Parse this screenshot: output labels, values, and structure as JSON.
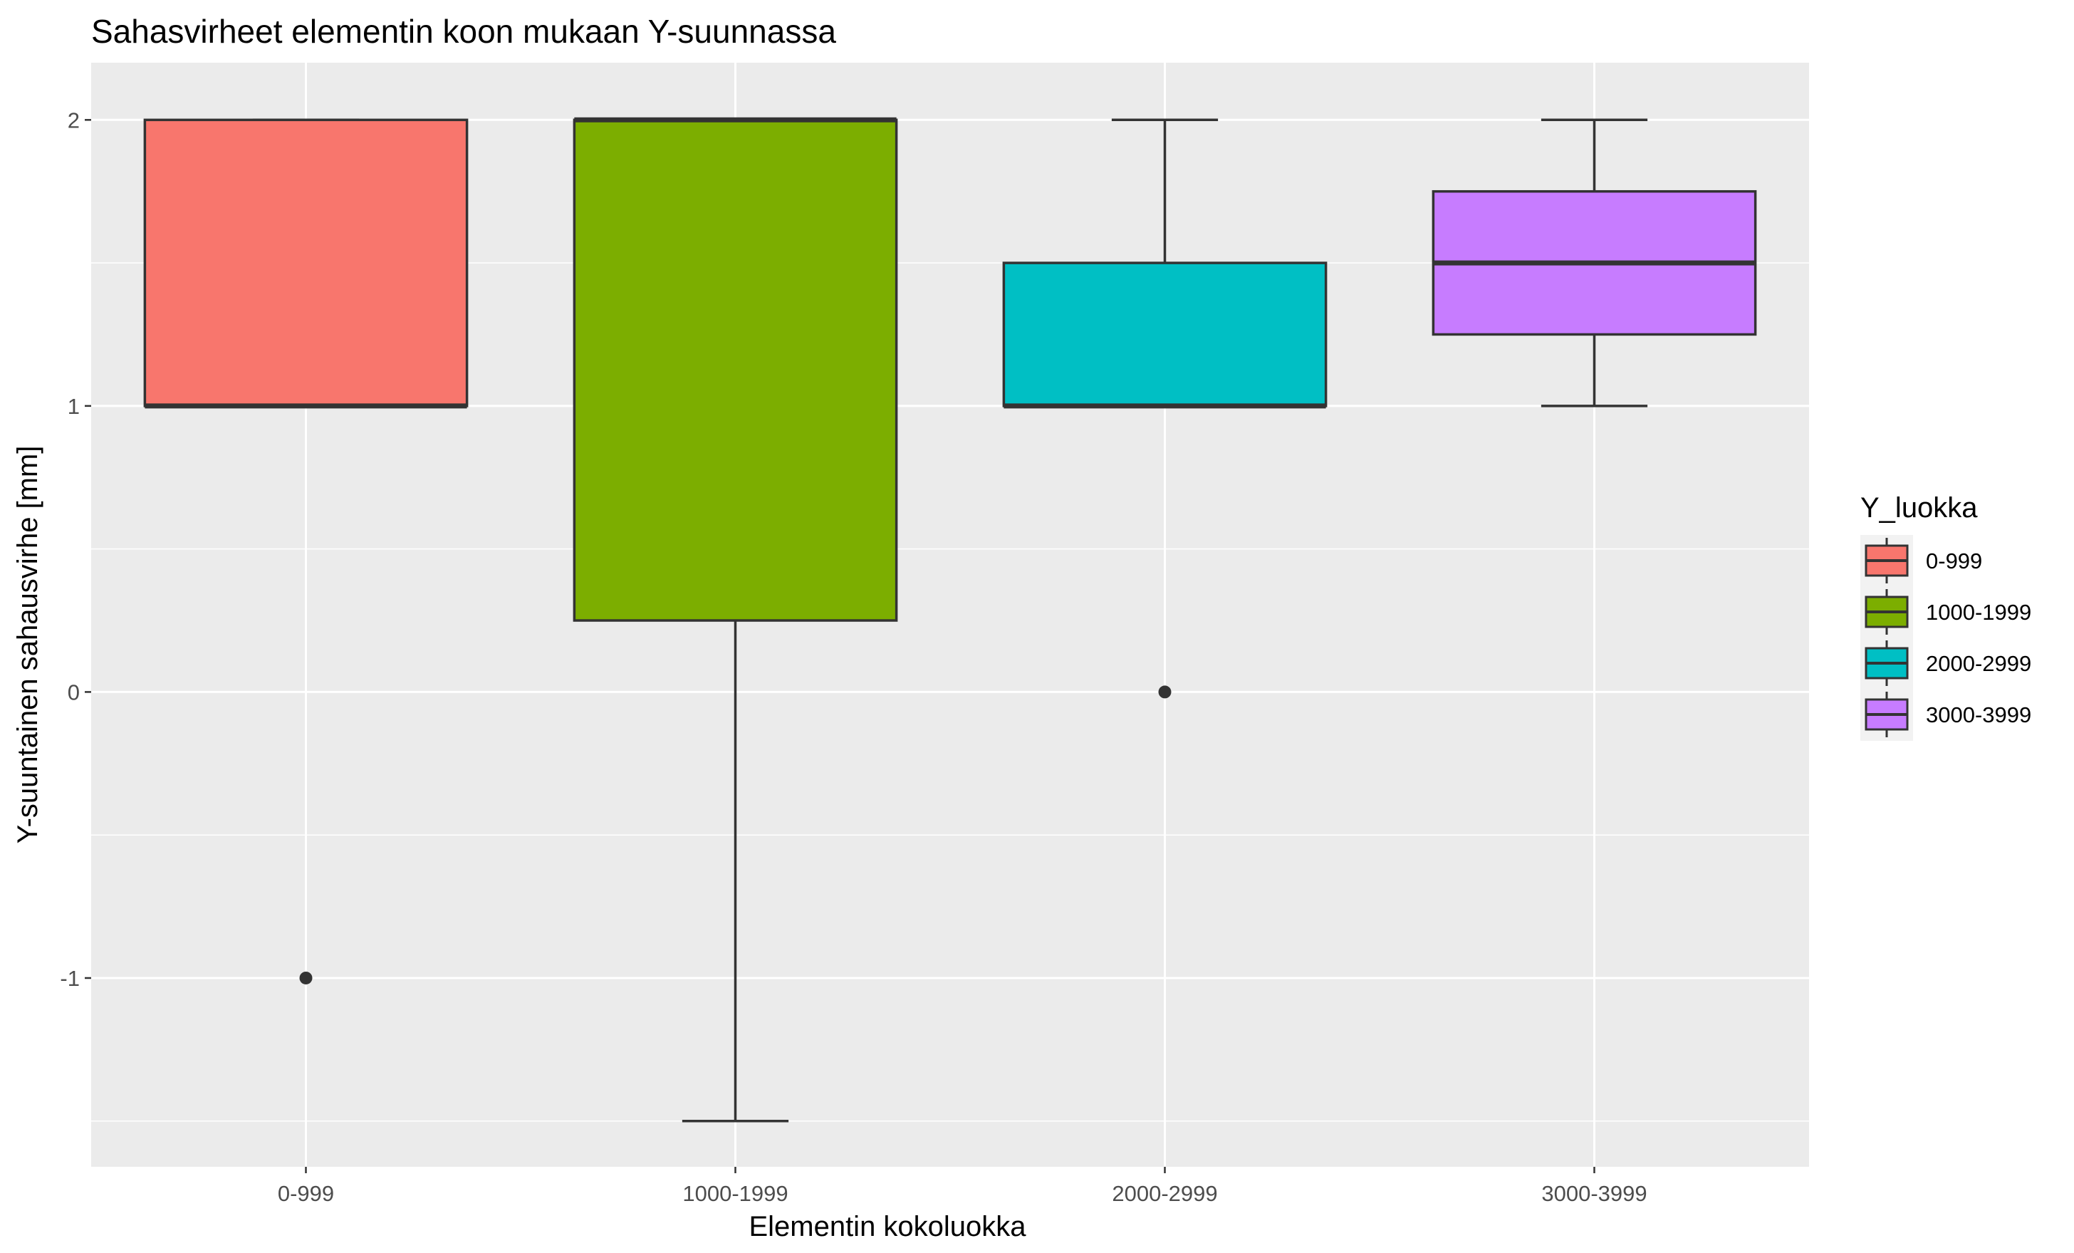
{
  "chart_data": {
    "type": "boxplot",
    "title": "Sahasvirheet elementin koon mukaan Y-suunnassa",
    "xlabel": "Elementin kokoluokka",
    "ylabel": "Y-suuntainen sahausvirhe [mm]",
    "ylim": [
      -1.66,
      2.2
    ],
    "yticks": [
      -1,
      0,
      1,
      2
    ],
    "grid": true,
    "legend": {
      "title": "Y_luokka",
      "position": "right",
      "entries": [
        "0-999",
        "1000-1999",
        "2000-2999",
        "3000-3999"
      ]
    },
    "categories": [
      "0-999",
      "1000-1999",
      "2000-2999",
      "3000-3999"
    ],
    "series": [
      {
        "name": "0-999",
        "color": "#F8766D",
        "min": 1,
        "q1": 1,
        "median": 1,
        "q3": 2,
        "max": 2,
        "outliers": [
          -1
        ]
      },
      {
        "name": "1000-1999",
        "color": "#7CAE00",
        "min": -1.5,
        "q1": 0.25,
        "median": 2,
        "q3": 2,
        "max": 2,
        "outliers": []
      },
      {
        "name": "2000-2999",
        "color": "#00BFC4",
        "min": 1,
        "q1": 1,
        "median": 1,
        "q3": 1.5,
        "max": 2,
        "outliers": [
          0
        ]
      },
      {
        "name": "3000-3999",
        "color": "#C77CFF",
        "min": 1,
        "q1": 1.25,
        "median": 1.5,
        "q3": 1.75,
        "max": 2,
        "outliers": []
      }
    ]
  }
}
